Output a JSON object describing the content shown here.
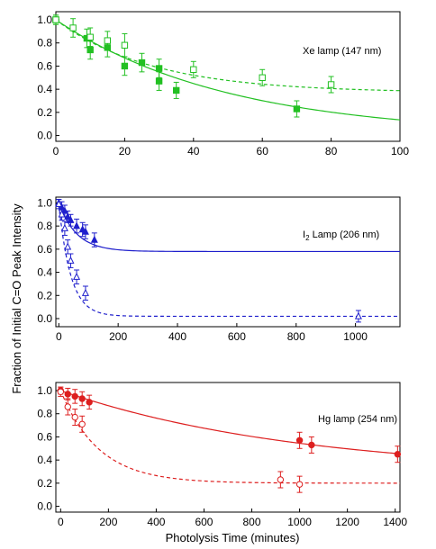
{
  "figure": {
    "ylabel": "Fraction of Initial C=O Peak Intensity",
    "xlabel": "Photolysis Time (minutes)"
  },
  "chart_data": [
    {
      "type": "scatter",
      "annotation": "Xe lamp (147 nm)",
      "xlim": [
        0,
        100
      ],
      "ylim": [
        -0.05,
        1.07
      ],
      "xticks": [
        0,
        20,
        40,
        60,
        80,
        100
      ],
      "yticks": [
        0.0,
        0.2,
        0.4,
        0.6,
        0.8,
        1.0
      ],
      "color": "#22c022",
      "series": [
        {
          "marker": "filled-square",
          "line": "solid",
          "points": [
            {
              "x": 0,
              "y": 1.0,
              "err": 0.04
            },
            {
              "x": 9,
              "y": 0.84,
              "err": 0.08
            },
            {
              "x": 10,
              "y": 0.74,
              "err": 0.08
            },
            {
              "x": 15,
              "y": 0.76,
              "err": 0.08
            },
            {
              "x": 20,
              "y": 0.6,
              "err": 0.08
            },
            {
              "x": 25,
              "y": 0.63,
              "err": 0.08
            },
            {
              "x": 30,
              "y": 0.58,
              "err": 0.08
            },
            {
              "x": 30,
              "y": 0.47,
              "err": 0.08
            },
            {
              "x": 35,
              "y": 0.39,
              "err": 0.07
            },
            {
              "x": 70,
              "y": 0.23,
              "err": 0.07
            }
          ],
          "fit": {
            "model": "exponential",
            "y0": 0.0,
            "A": 1.0,
            "tau": 50
          }
        },
        {
          "marker": "open-square",
          "line": "dashed",
          "points": [
            {
              "x": 0,
              "y": 1.0,
              "err": 0.04
            },
            {
              "x": 5,
              "y": 0.93,
              "err": 0.08
            },
            {
              "x": 10,
              "y": 0.85,
              "err": 0.08
            },
            {
              "x": 15,
              "y": 0.82,
              "err": 0.08
            },
            {
              "x": 20,
              "y": 0.78,
              "err": 0.1
            },
            {
              "x": 40,
              "y": 0.57,
              "err": 0.07
            },
            {
              "x": 60,
              "y": 0.5,
              "err": 0.07
            },
            {
              "x": 80,
              "y": 0.44,
              "err": 0.07
            }
          ],
          "fit": {
            "model": "exponential",
            "y0": 0.37,
            "A": 0.63,
            "tau": 28
          }
        }
      ]
    },
    {
      "type": "scatter",
      "annotation_prefix": "I",
      "annotation_sub": "2",
      "annotation_suffix": " Lamp (206 nm)",
      "xlim": [
        -10,
        1150
      ],
      "ylim": [
        -0.07,
        1.05
      ],
      "xticks": [
        0,
        200,
        400,
        600,
        800,
        1000
      ],
      "yticks": [
        0.0,
        0.2,
        0.4,
        0.6,
        0.8,
        1.0
      ],
      "color": "#1f1fcc",
      "series": [
        {
          "marker": "filled-triangle",
          "line": "solid",
          "points": [
            {
              "x": 0,
              "y": 1.0,
              "err": 0.03
            },
            {
              "x": 10,
              "y": 0.96,
              "err": 0.05
            },
            {
              "x": 20,
              "y": 0.93,
              "err": 0.05
            },
            {
              "x": 30,
              "y": 0.88,
              "err": 0.05
            },
            {
              "x": 40,
              "y": 0.85,
              "err": 0.05
            },
            {
              "x": 60,
              "y": 0.8,
              "err": 0.06
            },
            {
              "x": 80,
              "y": 0.77,
              "err": 0.06
            },
            {
              "x": 90,
              "y": 0.75,
              "err": 0.06
            },
            {
              "x": 120,
              "y": 0.68,
              "err": 0.06
            }
          ],
          "fit": {
            "model": "exponential",
            "y0": 0.58,
            "A": 0.42,
            "tau": 60
          }
        },
        {
          "marker": "open-triangle",
          "line": "dashed",
          "points": [
            {
              "x": 0,
              "y": 0.99,
              "err": 0.04
            },
            {
              "x": 10,
              "y": 0.9,
              "err": 0.05
            },
            {
              "x": 20,
              "y": 0.78,
              "err": 0.06
            },
            {
              "x": 30,
              "y": 0.62,
              "err": 0.06
            },
            {
              "x": 40,
              "y": 0.5,
              "err": 0.06
            },
            {
              "x": 60,
              "y": 0.36,
              "err": 0.06
            },
            {
              "x": 90,
              "y": 0.22,
              "err": 0.06
            },
            {
              "x": 1010,
              "y": 0.02,
              "err": 0.05
            }
          ],
          "fit": {
            "model": "exponential",
            "y0": 0.02,
            "A": 0.97,
            "tau": 40
          }
        }
      ]
    },
    {
      "type": "scatter",
      "annotation": "Hg lamp (254 nm)",
      "xlim": [
        -20,
        1420
      ],
      "ylim": [
        -0.05,
        1.07
      ],
      "xticks": [
        0,
        200,
        400,
        600,
        800,
        1000,
        1200,
        1400
      ],
      "yticks": [
        0.0,
        0.2,
        0.4,
        0.6,
        0.8,
        1.0
      ],
      "color": "#dd1f1f",
      "series": [
        {
          "marker": "filled-circle",
          "line": "solid",
          "points": [
            {
              "x": 0,
              "y": 1.0,
              "err": 0.03
            },
            {
              "x": 30,
              "y": 0.97,
              "err": 0.05
            },
            {
              "x": 60,
              "y": 0.95,
              "err": 0.06
            },
            {
              "x": 90,
              "y": 0.93,
              "err": 0.06
            },
            {
              "x": 120,
              "y": 0.9,
              "err": 0.06
            },
            {
              "x": 1000,
              "y": 0.57,
              "err": 0.07
            },
            {
              "x": 1050,
              "y": 0.53,
              "err": 0.07
            },
            {
              "x": 1410,
              "y": 0.45,
              "err": 0.07
            }
          ],
          "fit": {
            "model": "exponential",
            "y0": 0.28,
            "A": 0.72,
            "tau": 1000
          }
        },
        {
          "marker": "open-circle",
          "line": "dashed",
          "points": [
            {
              "x": 0,
              "y": 0.99,
              "err": 0.04
            },
            {
              "x": 30,
              "y": 0.86,
              "err": 0.07
            },
            {
              "x": 60,
              "y": 0.77,
              "err": 0.07
            },
            {
              "x": 90,
              "y": 0.71,
              "err": 0.07
            },
            {
              "x": 920,
              "y": 0.23,
              "err": 0.07
            },
            {
              "x": 1000,
              "y": 0.19,
              "err": 0.07
            }
          ],
          "fit": {
            "model": "exponential",
            "y0": 0.2,
            "A": 0.8,
            "tau": 160
          }
        }
      ]
    }
  ]
}
